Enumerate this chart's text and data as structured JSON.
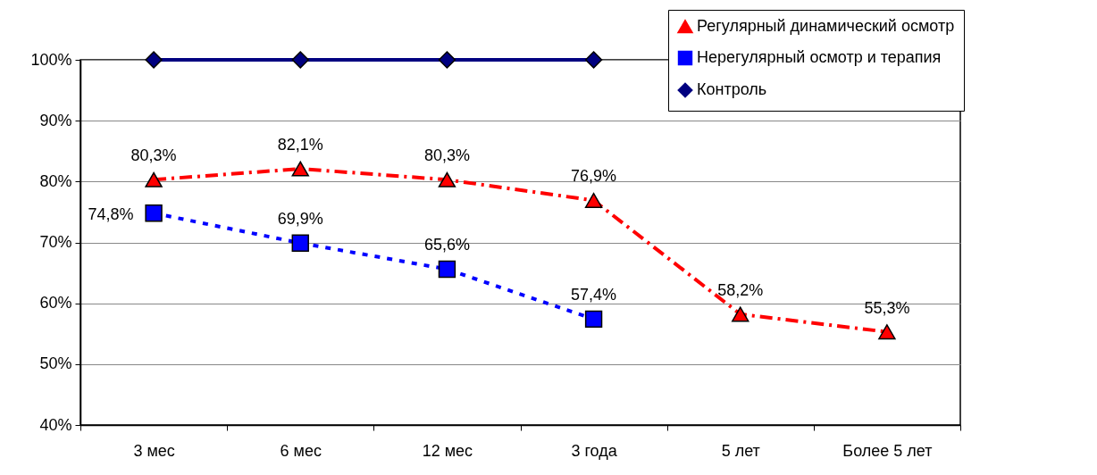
{
  "chart_data": {
    "type": "line",
    "categories": [
      "3 мес",
      "6 мес",
      "12 мес",
      "3 года",
      "5 лет",
      "Более 5 лет"
    ],
    "series": [
      {
        "name": "Регулярный динамический осмотр",
        "color": "#ff0000",
        "marker": "triangle",
        "line_style": "dashed",
        "values": [
          80.3,
          82.1,
          80.3,
          76.9,
          58.2,
          55.3
        ],
        "value_labels": [
          "80,3%",
          "82,1%",
          "80,3%",
          "76,9%",
          "58,2%",
          "55,3%"
        ]
      },
      {
        "name": "Нерегулярный осмотр и терапия",
        "color": "#0000ff",
        "marker": "square",
        "line_style": "dotted",
        "values": [
          74.8,
          69.9,
          65.6,
          57.4,
          null,
          null
        ],
        "value_labels": [
          "74,8%",
          "69,9%",
          "65,6%",
          "57,4%",
          null,
          null
        ]
      },
      {
        "name": "Контроль",
        "color": "#000080",
        "marker": "diamond",
        "line_style": "solid",
        "values": [
          100,
          100,
          100,
          100,
          null,
          null
        ]
      }
    ],
    "ylim": [
      40,
      100
    ],
    "yticks": [
      {
        "value": 40,
        "label": "40%"
      },
      {
        "value": 50,
        "label": "50%"
      },
      {
        "value": 60,
        "label": "60%"
      },
      {
        "value": 70,
        "label": "70%"
      },
      {
        "value": 80,
        "label": "80%"
      },
      {
        "value": 90,
        "label": "90%"
      },
      {
        "value": 100,
        "label": "100%"
      }
    ],
    "grid": "y",
    "legend": "top right"
  }
}
